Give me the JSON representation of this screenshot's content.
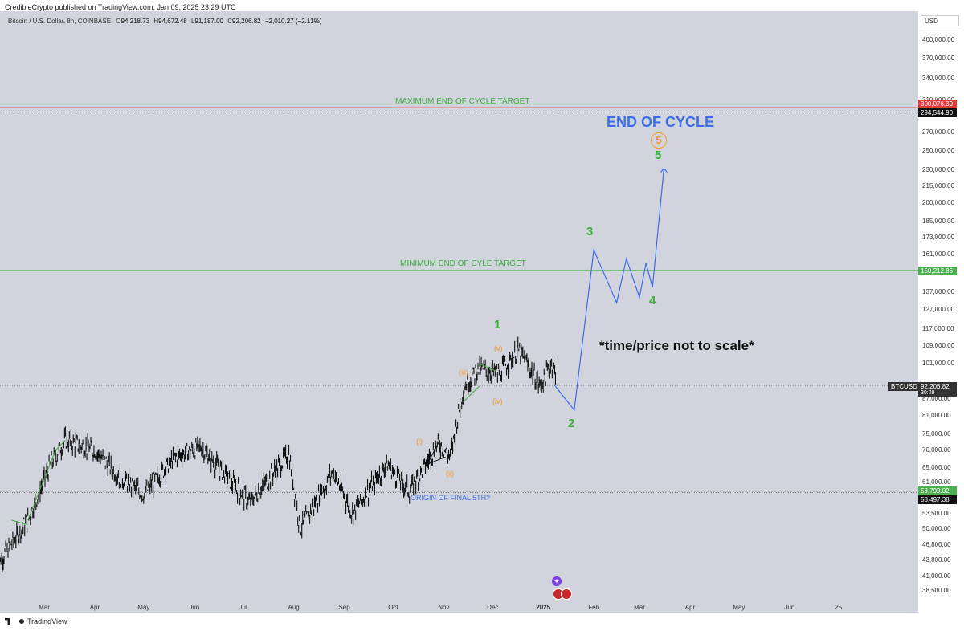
{
  "header": {
    "published": "CredibleCrypto published on TradingView.com, Jan 09, 2025 23:29 UTC",
    "symbol": "Bitcoin / U.S. Dollar, 8h, COINBASE",
    "open_label": "O",
    "open": "94,218.73",
    "high_label": "H",
    "high": "94,672.48",
    "low_label": "L",
    "low": "91,187.00",
    "close_label": "C",
    "close": "92,206.82",
    "change": "−2,010.27 (−2.13%)"
  },
  "axis": {
    "currency": "USD",
    "y_ticks": [
      "400,000.00",
      "370,000.00",
      "340,000.00",
      "310,000.00",
      "294,544.90",
      "270,000.00",
      "250,000.00",
      "230,000.00",
      "215,000.00",
      "200,000.00",
      "185,000.00",
      "173,000.00",
      "161,000.00",
      "150,212.86",
      "137,000.00",
      "127,000.00",
      "117,000.00",
      "109,000.00",
      "101,000.00",
      "92,206.82",
      "87,000.00",
      "81,000.00",
      "75,000.00",
      "70,000.00",
      "65,000.00",
      "61,000.00",
      "58,799.02",
      "58,497.38",
      "53,500.00",
      "50,000.00",
      "46,800.00",
      "43,800.00",
      "41,000.00",
      "38,500.00"
    ],
    "x_ticks": [
      "Mar",
      "Apr",
      "May",
      "Jun",
      "Jul",
      "Aug",
      "Sep",
      "Oct",
      "Nov",
      "Dec",
      "2025",
      "Feb",
      "Mar",
      "Apr",
      "May",
      "Jun",
      "25"
    ],
    "price_badge_symbol": "BTCUSD",
    "price_badge_value": "92,206.82",
    "price_badge_timer": "30:29",
    "max_badge": "300,076.39",
    "max_badge_2": "294,544.90",
    "min_badge": "150,212.86",
    "origin_badge": "58,799.02",
    "origin_badge_2": "58,497.38"
  },
  "annotations": {
    "max_target": "MAXIMUM END OF CYCLE TARGET",
    "min_target": "MINIMUM END OF CYLE TARGET",
    "end_of_cycle": "END OF CYCLE",
    "not_to_scale": "*time/price not to scale*",
    "origin": "ORIGIN OF FINAL 5TH?",
    "wave_1": "1",
    "wave_2": "2",
    "wave_3": "3",
    "wave_4": "4",
    "wave_5": "5",
    "wave_5_circled": "5",
    "sub_i": "(i)",
    "sub_ii": "(ii)",
    "sub_iii": "(iii)",
    "sub_iv": "(iv)",
    "sub_v": "(v)"
  },
  "colors": {
    "background": "#d1d4dc",
    "candles": "#111111",
    "max_line": "#e53935",
    "min_line": "#4caf50",
    "projection": "#3d6ee8",
    "wave_green": "#3fae3f",
    "wave_orange": "#f59a23"
  },
  "footer": {
    "brand": "TradingView"
  },
  "chart_data": {
    "type": "line",
    "title": "",
    "xlabel": "",
    "ylabel": "",
    "ylim": [
      38500,
      400000
    ],
    "y_scale": "log",
    "horizontal_levels": [
      {
        "name": "MAXIMUM END OF CYCLE TARGET",
        "value": 300076.39
      },
      {
        "name": "MINIMUM END OF CYLE TARGET",
        "value": 150212.86
      },
      {
        "name": "ORIGIN OF FINAL 5TH?",
        "value": 58799.02
      }
    ],
    "projection_path": [
      {
        "x": "2025-01-08",
        "y": 92206
      },
      {
        "x": "2025-01-20",
        "y": 83000
      },
      {
        "x": "2025-02-01",
        "y": 164000
      },
      {
        "x": "2025-02-15",
        "y": 131000
      },
      {
        "x": "2025-02-21",
        "y": 158000
      },
      {
        "x": "2025-03-01",
        "y": 134000
      },
      {
        "x": "2025-03-05",
        "y": 155000
      },
      {
        "x": "2025-03-09",
        "y": 140000
      },
      {
        "x": "2025-03-16",
        "y": 232000
      }
    ],
    "price_series": {
      "name": "BTCUSD",
      "x": [
        "2024-02-01",
        "2024-02-20",
        "2024-03-05",
        "2024-03-14",
        "2024-04-01",
        "2024-04-15",
        "2024-05-01",
        "2024-05-20",
        "2024-06-05",
        "2024-06-24",
        "2024-07-05",
        "2024-07-29",
        "2024-08-05",
        "2024-08-25",
        "2024-09-06",
        "2024-09-27",
        "2024-10-11",
        "2024-10-29",
        "2024-11-05",
        "2024-11-13",
        "2024-11-22",
        "2024-12-05",
        "2024-12-17",
        "2024-12-30",
        "2025-01-07",
        "2025-01-09"
      ],
      "values": [
        43000,
        52000,
        66000,
        73000,
        70000,
        63000,
        58000,
        68000,
        71000,
        61000,
        56000,
        69000,
        50000,
        64000,
        53500,
        66000,
        58800,
        72500,
        68000,
        91000,
        99000,
        97000,
        107000,
        92000,
        102000,
        92206
      ]
    }
  }
}
